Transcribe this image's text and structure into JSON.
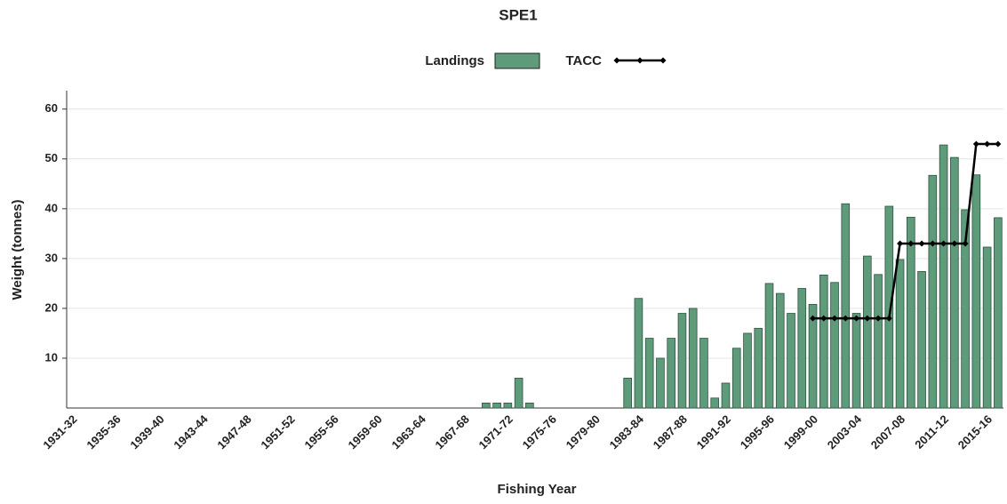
{
  "chart_data": {
    "type": "bar",
    "title": "SPE1",
    "x_label": "Fishing Year",
    "y_label": "Weight (tonnes)",
    "categories": [
      "1931-32",
      null,
      null,
      null,
      "1935-36",
      null,
      null,
      null,
      "1939-40",
      null,
      null,
      null,
      "1943-44",
      null,
      null,
      null,
      "1947-48",
      null,
      null,
      null,
      "1951-52",
      null,
      null,
      null,
      "1955-56",
      null,
      null,
      null,
      "1959-60",
      null,
      null,
      null,
      "1963-64",
      null,
      null,
      null,
      "1967-68",
      null,
      null,
      null,
      "1971-72",
      null,
      null,
      null,
      "1975-76",
      null,
      null,
      null,
      "1979-80",
      null,
      null,
      null,
      "1983-84",
      null,
      null,
      null,
      "1987-88",
      null,
      null,
      null,
      "1991-92",
      null,
      null,
      null,
      "1995-96",
      null,
      null,
      null,
      "1999-00",
      null,
      null,
      null,
      "2003-04",
      null,
      null,
      null,
      "2007-08",
      null,
      null,
      null,
      "2011-12",
      null,
      null,
      null,
      "2015-16",
      null
    ],
    "series": [
      {
        "name": "Landings",
        "type": "bar",
        "color": "#5e9b7b",
        "values": [
          null,
          null,
          null,
          null,
          null,
          null,
          null,
          null,
          null,
          null,
          null,
          null,
          null,
          null,
          null,
          null,
          null,
          null,
          null,
          null,
          null,
          null,
          null,
          null,
          null,
          null,
          null,
          null,
          null,
          null,
          null,
          null,
          null,
          null,
          null,
          null,
          null,
          null,
          1,
          1,
          1,
          6,
          1,
          null,
          null,
          null,
          null,
          null,
          null,
          null,
          null,
          6,
          22,
          14,
          10,
          14,
          19,
          20,
          14,
          2,
          5,
          12,
          15,
          16,
          25,
          23,
          19,
          24,
          20.8,
          26.7,
          25.2,
          41,
          19,
          30.5,
          26.8,
          40.5,
          29.8,
          38.3,
          27.4,
          46.7,
          52.8,
          50.3,
          39.8,
          46.8,
          32.3,
          38.2
        ]
      },
      {
        "name": "TACC",
        "type": "line",
        "color": "#000000",
        "values": [
          null,
          null,
          null,
          null,
          null,
          null,
          null,
          null,
          null,
          null,
          null,
          null,
          null,
          null,
          null,
          null,
          null,
          null,
          null,
          null,
          null,
          null,
          null,
          null,
          null,
          null,
          null,
          null,
          null,
          null,
          null,
          null,
          null,
          null,
          null,
          null,
          null,
          null,
          null,
          null,
          null,
          null,
          null,
          null,
          null,
          null,
          null,
          null,
          null,
          null,
          null,
          null,
          null,
          null,
          null,
          null,
          null,
          null,
          null,
          null,
          null,
          null,
          null,
          null,
          null,
          null,
          null,
          null,
          18,
          18,
          18,
          18,
          18,
          18,
          18,
          18,
          33,
          33,
          33,
          33,
          33,
          33,
          33,
          53,
          53,
          53
        ]
      }
    ],
    "ylim": [
      0,
      63.7
    ],
    "yticks": [
      10,
      20,
      30,
      40,
      50,
      60
    ],
    "grid": true
  }
}
